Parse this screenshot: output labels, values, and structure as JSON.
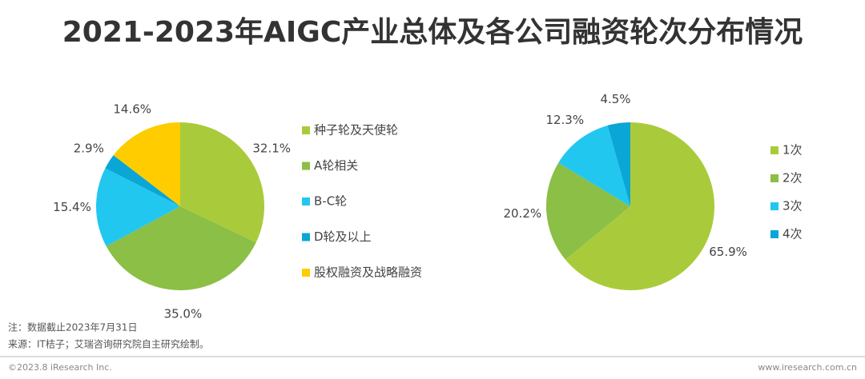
{
  "title": "2021-2023年AIGC产业总体及各公司融资轮次分布情况",
  "chart_data": [
    {
      "type": "pie",
      "categories": [
        "种子轮及天使轮",
        "A轮相关",
        "B-C轮",
        "D轮及以上",
        "股权融资及战略融资"
      ],
      "values": [
        32.1,
        35.0,
        15.4,
        2.9,
        14.6
      ],
      "value_labels": [
        "32.1%",
        "35.0%",
        "15.4%",
        "2.9%",
        "14.6%"
      ],
      "colors": [
        "#a9cb3b",
        "#8bbf45",
        "#22c7ef",
        "#0aa6d6",
        "#ffcc00"
      ]
    },
    {
      "type": "pie",
      "categories": [
        "1次",
        "2次",
        "3次",
        "4次"
      ],
      "values": [
        65.9,
        20.2,
        12.3,
        4.5
      ],
      "value_labels": [
        "65.9%",
        "20.2%",
        "12.3%",
        "4.5%"
      ],
      "colors": [
        "#a9cb3b",
        "#8bbf45",
        "#22c7ef",
        "#0aa6d6"
      ]
    }
  ],
  "notes": [
    "注：数据截止2023年7月31日",
    "来源：IT桔子；艾瑞咨询研究院自主研究绘制。"
  ],
  "footer": {
    "left": "©2023.8 iResearch Inc.",
    "right": "www.iresearch.com.cn"
  }
}
